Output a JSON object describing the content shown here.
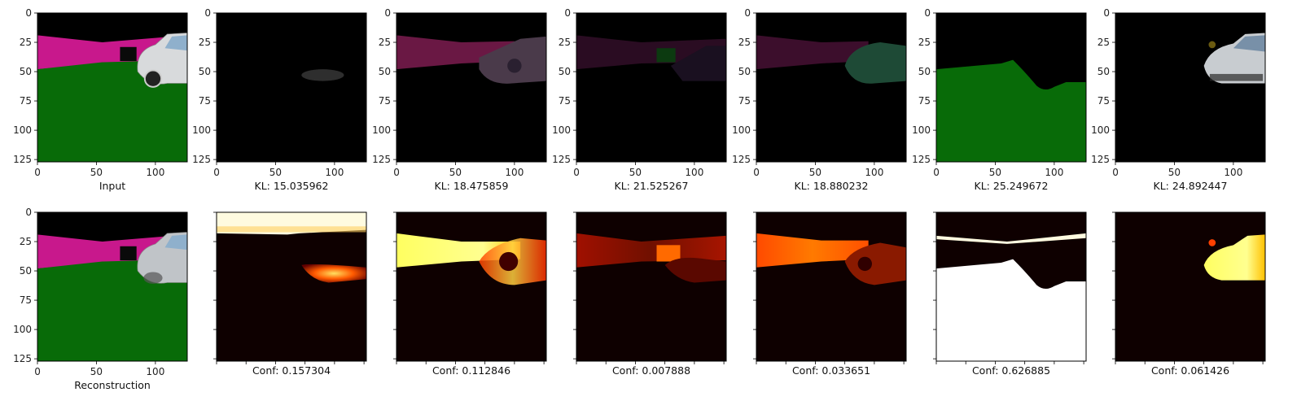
{
  "chart_data": {
    "type": "image-grid",
    "rows": 2,
    "cols": 7,
    "image_axis_ticks": [
      "0",
      "25",
      "50",
      "75",
      "100",
      "125"
    ],
    "image_axis_xticks": [
      "0",
      "50",
      "100"
    ],
    "top_row": [
      {
        "caption": "Input",
        "content": "input"
      },
      {
        "caption": "KL: 15.035962",
        "content": "slot1"
      },
      {
        "caption": "KL: 18.475859",
        "content": "slot2"
      },
      {
        "caption": "KL: 21.525267",
        "content": "slot3"
      },
      {
        "caption": "KL: 18.880232",
        "content": "slot4"
      },
      {
        "caption": "KL: 25.249672",
        "content": "slot5"
      },
      {
        "caption": "KL: 24.892447",
        "content": "slot6"
      }
    ],
    "bottom_row": [
      {
        "caption": "Reconstruction",
        "content": "recon"
      },
      {
        "caption": "Conf: 0.157304",
        "content": "conf1"
      },
      {
        "caption": "Conf: 0.112846",
        "content": "conf2"
      },
      {
        "caption": "Conf: 0.007888",
        "content": "conf3"
      },
      {
        "caption": "Conf: 0.033651",
        "content": "conf4"
      },
      {
        "caption": "Conf: 0.626885",
        "content": "conf5"
      },
      {
        "caption": "Conf: 0.061426",
        "content": "conf6"
      }
    ],
    "kl_values": [
      15.035962,
      18.475859,
      21.525267,
      18.880232,
      25.249672,
      24.892447
    ],
    "conf_values": [
      0.157304,
      0.112846,
      0.007888,
      0.033651,
      0.626885,
      0.061426
    ],
    "colors": {
      "pink": "#c8188c",
      "green": "#086b08",
      "black": "#000000",
      "heat_dark": "#0e0000",
      "heat_hot": "#ffff80"
    }
  }
}
